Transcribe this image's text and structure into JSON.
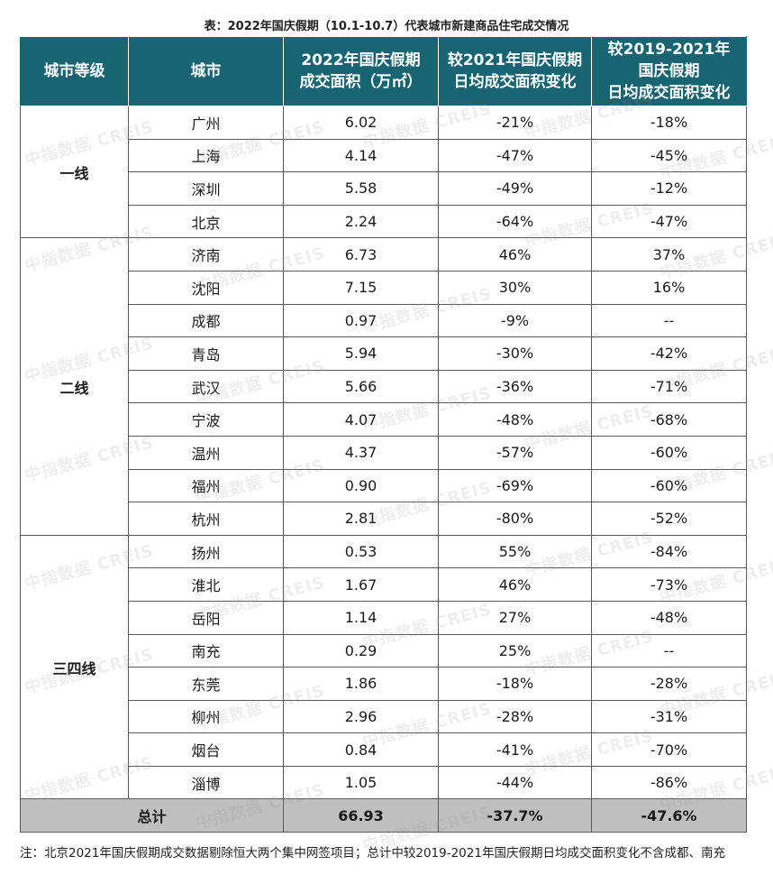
{
  "title": "表：2022年国庆假期（10.1-10.7）代表城市新建商品住宅成交情况",
  "headers": {
    "tier": "城市等级",
    "city": "城市",
    "area_l1": "2022年国庆假期",
    "area_l2": "成交面积（万㎡）",
    "vs2021_l1": "较2021年国庆假期",
    "vs2021_l2": "日均成交面积变化",
    "vs2019_l1": "较2019-2021年",
    "vs2019_l2": "国庆假期",
    "vs2019_l3": "日均成交面积变化"
  },
  "tiers": [
    {
      "label": "一线",
      "rows": [
        {
          "city": "广州",
          "area": "6.02",
          "vs2021": "-21%",
          "vs2019": "-18%"
        },
        {
          "city": "上海",
          "area": "4.14",
          "vs2021": "-47%",
          "vs2019": "-45%"
        },
        {
          "city": "深圳",
          "area": "5.58",
          "vs2021": "-49%",
          "vs2019": "-12%"
        },
        {
          "city": "北京",
          "area": "2.24",
          "vs2021": "-64%",
          "vs2019": "-47%"
        }
      ]
    },
    {
      "label": "二线",
      "rows": [
        {
          "city": "济南",
          "area": "6.73",
          "vs2021": "46%",
          "vs2019": "37%"
        },
        {
          "city": "沈阳",
          "area": "7.15",
          "vs2021": "30%",
          "vs2019": "16%"
        },
        {
          "city": "成都",
          "area": "0.97",
          "vs2021": "-9%",
          "vs2019": "--"
        },
        {
          "city": "青岛",
          "area": "5.94",
          "vs2021": "-30%",
          "vs2019": "-42%"
        },
        {
          "city": "武汉",
          "area": "5.66",
          "vs2021": "-36%",
          "vs2019": "-71%"
        },
        {
          "city": "宁波",
          "area": "4.07",
          "vs2021": "-48%",
          "vs2019": "-68%"
        },
        {
          "city": "温州",
          "area": "4.37",
          "vs2021": "-57%",
          "vs2019": "-60%"
        },
        {
          "city": "福州",
          "area": "0.90",
          "vs2021": "-69%",
          "vs2019": "-60%"
        },
        {
          "city": "杭州",
          "area": "2.81",
          "vs2021": "-80%",
          "vs2019": "-52%"
        }
      ]
    },
    {
      "label": "三四线",
      "rows": [
        {
          "city": "扬州",
          "area": "0.53",
          "vs2021": "55%",
          "vs2019": "-84%"
        },
        {
          "city": "淮北",
          "area": "1.67",
          "vs2021": "46%",
          "vs2019": "-73%"
        },
        {
          "city": "岳阳",
          "area": "1.14",
          "vs2021": "27%",
          "vs2019": "-48%"
        },
        {
          "city": "南充",
          "area": "0.29",
          "vs2021": "25%",
          "vs2019": "--"
        },
        {
          "city": "东莞",
          "area": "1.86",
          "vs2021": "-18%",
          "vs2019": "-28%"
        },
        {
          "city": "柳州",
          "area": "2.96",
          "vs2021": "-28%",
          "vs2019": "-31%"
        },
        {
          "city": "烟台",
          "area": "0.84",
          "vs2021": "-41%",
          "vs2019": "-70%"
        },
        {
          "city": "淄博",
          "area": "1.05",
          "vs2021": "-44%",
          "vs2019": "-86%"
        }
      ]
    }
  ],
  "total": {
    "label": "总计",
    "area": "66.93",
    "vs2021": "-37.7%",
    "vs2019": "-47.6%"
  },
  "note": "注：北京2021年国庆假期成交数据剔除恒大两个集中网签项目；总计中较2019-2021年国庆假期日均成交面积变化不含成都、南充",
  "watermark": "中指数据 CREIS",
  "colors": {
    "header_bg": "#176472",
    "total_bg": "#bfbfbf"
  }
}
